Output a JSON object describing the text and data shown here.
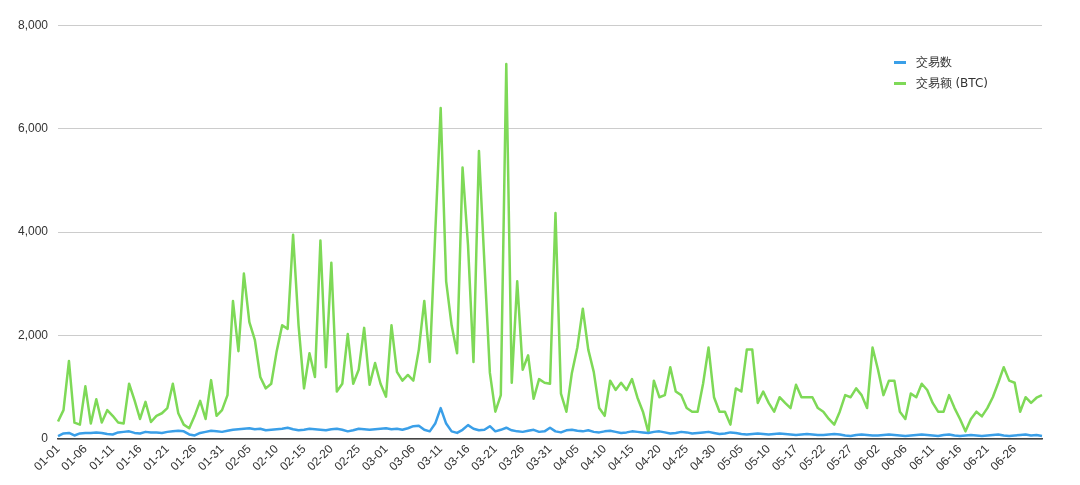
{
  "chart_data": {
    "type": "line",
    "categories": [
      "01-01",
      null,
      null,
      null,
      null,
      "01-06",
      null,
      null,
      null,
      null,
      "01-11",
      null,
      null,
      null,
      null,
      "01-16",
      null,
      null,
      null,
      null,
      "01-21",
      null,
      null,
      null,
      null,
      "01-26",
      null,
      null,
      null,
      null,
      "01-31",
      null,
      null,
      null,
      null,
      "02-05",
      null,
      null,
      null,
      null,
      "02-10",
      null,
      null,
      null,
      null,
      "02-15",
      null,
      null,
      null,
      null,
      "02-20",
      null,
      null,
      null,
      null,
      "02-25",
      null,
      null,
      null,
      null,
      "03-01",
      null,
      null,
      null,
      null,
      "03-06",
      null,
      null,
      null,
      null,
      "03-11",
      null,
      null,
      null,
      null,
      "03-16",
      null,
      null,
      null,
      null,
      "03-21",
      null,
      null,
      null,
      null,
      "03-26",
      null,
      null,
      null,
      null,
      "03-31",
      null,
      null,
      null,
      null,
      "04-05",
      null,
      null,
      null,
      null,
      "04-10",
      null,
      null,
      null,
      null,
      "04-15",
      null,
      null,
      null,
      null,
      "04-20",
      null,
      null,
      null,
      null,
      "04-25",
      null,
      null,
      null,
      null,
      "04-30",
      null,
      null,
      null,
      null,
      "05-05",
      null,
      null,
      null,
      null,
      "05-10",
      null,
      null,
      null,
      null,
      "05-17",
      null,
      null,
      null,
      null,
      "05-22",
      null,
      null,
      null,
      null,
      "05-27",
      null,
      null,
      null,
      null,
      "06-02",
      null,
      null,
      null,
      null,
      "06-06",
      null,
      null,
      null,
      null,
      "06-11",
      null,
      null,
      null,
      null,
      "06-16",
      null,
      null,
      null,
      null,
      "06-21",
      null,
      null,
      null,
      null,
      "06-26",
      null,
      null,
      null,
      null,
      null
    ],
    "series": [
      {
        "name": "交易数",
        "color": "#3a9fe8",
        "values": [
          60,
          110,
          120,
          70,
          110,
          120,
          120,
          130,
          120,
          100,
          90,
          130,
          140,
          150,
          120,
          110,
          140,
          130,
          130,
          120,
          140,
          150,
          160,
          150,
          90,
          70,
          120,
          140,
          160,
          150,
          140,
          160,
          180,
          190,
          200,
          210,
          190,
          200,
          170,
          180,
          190,
          200,
          220,
          190,
          170,
          180,
          200,
          190,
          180,
          170,
          190,
          200,
          180,
          150,
          170,
          200,
          190,
          180,
          190,
          200,
          210,
          190,
          200,
          180,
          210,
          250,
          260,
          180,
          150,
          300,
          600,
          300,
          150,
          120,
          180,
          270,
          200,
          170,
          180,
          250,
          150,
          180,
          220,
          170,
          150,
          140,
          160,
          180,
          140,
          150,
          220,
          150,
          130,
          170,
          180,
          160,
          150,
          170,
          140,
          130,
          150,
          160,
          140,
          120,
          130,
          150,
          140,
          130,
          120,
          140,
          150,
          130,
          110,
          120,
          140,
          130,
          110,
          120,
          130,
          140,
          120,
          100,
          110,
          130,
          120,
          100,
          90,
          100,
          110,
          100,
          90,
          100,
          110,
          100,
          90,
          80,
          90,
          100,
          90,
          80,
          80,
          90,
          100,
          90,
          70,
          60,
          80,
          90,
          80,
          70,
          70,
          80,
          90,
          80,
          70,
          60,
          70,
          80,
          90,
          80,
          70,
          60,
          80,
          90,
          70,
          60,
          70,
          80,
          70,
          60,
          70,
          80,
          90,
          70,
          60,
          70,
          80,
          90,
          70,
          80,
          60
        ]
      },
      {
        "name": "交易额 (BTC)",
        "color": "#7ed957",
        "values": [
          340,
          560,
          1510,
          320,
          280,
          1020,
          300,
          770,
          320,
          560,
          450,
          320,
          300,
          1070,
          750,
          390,
          720,
          330,
          450,
          500,
          600,
          1070,
          500,
          280,
          210,
          450,
          740,
          390,
          1140,
          450,
          560,
          850,
          2670,
          1700,
          3200,
          2260,
          1920,
          1200,
          980,
          1070,
          1700,
          2200,
          2130,
          3950,
          2200,
          980,
          1660,
          1200,
          3840,
          1390,
          3410,
          920,
          1070,
          2030,
          1070,
          1340,
          2150,
          1050,
          1470,
          1070,
          820,
          2200,
          1300,
          1130,
          1240,
          1130,
          1730,
          2670,
          1490,
          3970,
          6400,
          3050,
          2200,
          1660,
          5250,
          3750,
          1490,
          5570,
          3400,
          1280,
          530,
          850,
          7250,
          1090,
          3050,
          1340,
          1620,
          780,
          1160,
          1090,
          1070,
          4370,
          880,
          530,
          1280,
          1770,
          2520,
          1730,
          1300,
          600,
          450,
          1130,
          950,
          1090,
          950,
          1160,
          800,
          530,
          130,
          1130,
          810,
          850,
          1390,
          920,
          850,
          600,
          530,
          530,
          1070,
          1770,
          810,
          530,
          530,
          280,
          980,
          920,
          1730,
          1730,
          700,
          920,
          700,
          530,
          810,
          700,
          600,
          1050,
          810,
          810,
          810,
          600,
          530,
          390,
          280,
          530,
          850,
          810,
          980,
          850,
          600,
          1770,
          1340,
          850,
          1130,
          1130,
          530,
          390,
          880,
          810,
          1070,
          950,
          700,
          530,
          530,
          850,
          600,
          390,
          150,
          390,
          530,
          440,
          600,
          810,
          1090,
          1390,
          1130,
          1090,
          530,
          810,
          700,
          800,
          850
        ]
      }
    ],
    "ylim": [
      0,
      8000
    ],
    "yticks": [
      0,
      {
        "value": 2000,
        "label": "2,000"
      },
      {
        "value": 4000,
        "label": "4,000"
      },
      {
        "value": 6000,
        "label": "6,000"
      },
      {
        "value": 8000,
        "label": "8,000"
      }
    ],
    "grid": "y",
    "legend": "top right",
    "marker": "none",
    "line_style": "solid"
  }
}
